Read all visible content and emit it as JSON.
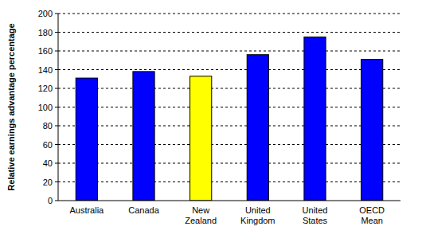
{
  "chart_data": {
    "type": "bar",
    "y_label": "Relative earnings advantage percentage",
    "categories": [
      "Australia",
      "Canada",
      "New Zealand",
      "United Kingdom",
      "United States",
      "OECD Mean"
    ],
    "values": [
      131,
      138,
      133,
      156,
      175,
      151
    ],
    "colors": [
      "#0000ff",
      "#0000ff",
      "#ffff00",
      "#0000ff",
      "#0000ff",
      "#0000ff"
    ],
    "ylim": [
      0,
      200
    ],
    "yticks": [
      0,
      20,
      40,
      60,
      80,
      100,
      120,
      140,
      160,
      180,
      200
    ],
    "grid": true
  }
}
